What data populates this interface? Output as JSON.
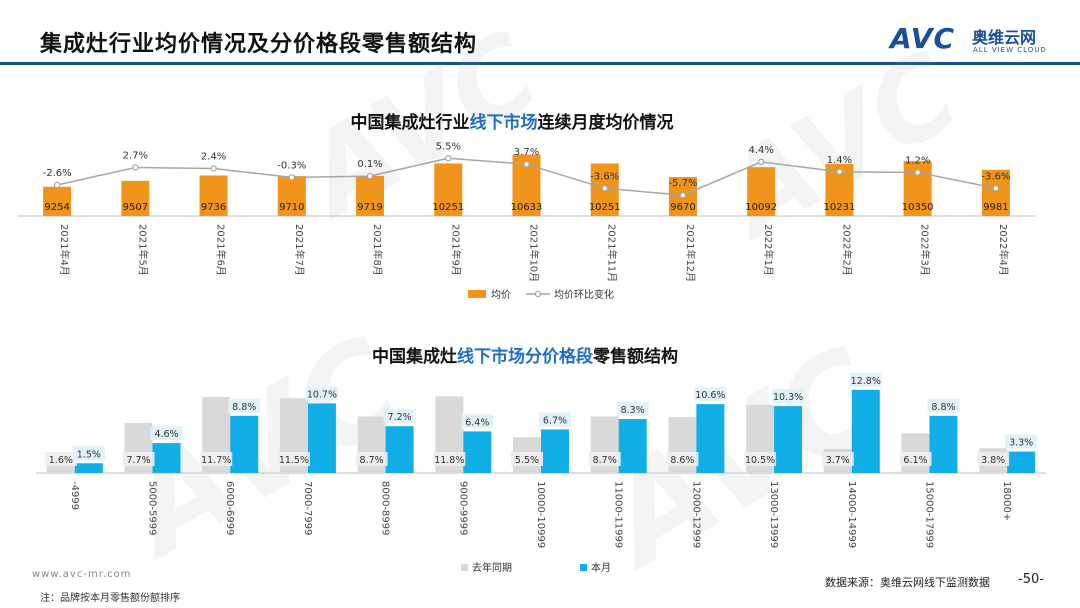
{
  "page_title": "集成灶行业均价情况及分价格段零售额结构",
  "logo": {
    "mark": "AVC",
    "cn": "奥维云网",
    "en": "ALL VIEW CLOUD"
  },
  "footer": {
    "url": "www.avc-mr.com",
    "note": "注：品牌按本月零售额份额排序",
    "source": "数据来源：奥维云网线下监测数据",
    "page": "-50-"
  },
  "colors": {
    "brand": "#1a4f9c",
    "orange": "#f0941c",
    "line": "#a6a6a6",
    "prev": "#d9d9d9",
    "curr": "#12aee8",
    "highlight": "#1f6fc5"
  },
  "chart_data": [
    {
      "type": "bar",
      "title_parts": [
        "中国集成灶行业",
        "线下市场",
        "连续月度均价情况"
      ],
      "categories": [
        "2021年4月",
        "2021年5月",
        "2021年6月",
        "2021年7月",
        "2021年8月",
        "2021年9月",
        "2021年10月",
        "2021年11月",
        "2021年12月",
        "2022年1月",
        "2022年2月",
        "2022年3月",
        "2022年4月"
      ],
      "series": [
        {
          "name": "均价",
          "type": "bar",
          "values": [
            9254,
            9507,
            9736,
            9710,
            9719,
            10251,
            10633,
            10251,
            9670,
            10092,
            10231,
            10350,
            9981
          ]
        },
        {
          "name": "均价环比变化",
          "type": "line",
          "values": [
            -2.6,
            2.7,
            2.4,
            -0.3,
            0.1,
            5.5,
            3.7,
            -3.6,
            -5.7,
            4.4,
            1.4,
            1.2,
            -3.6
          ]
        }
      ],
      "line_labels": [
        "-2.6%",
        "2.7%",
        "2.4%",
        "-0.3%",
        "0.1%",
        "5.5%",
        "3.7%",
        "-3.6%",
        "-5.7%",
        "4.4%",
        "1.4%",
        "1.2%",
        "-3.6%"
      ],
      "legend": [
        "均价",
        "均价环比变化"
      ],
      "ylim": [
        8000,
        11000
      ],
      "line_ylim": [
        -12,
        8
      ]
    },
    {
      "type": "bar",
      "title_parts": [
        "中国集成灶",
        "线下市场分价格段",
        "零售额结构"
      ],
      "categories": [
        "-4999",
        "5000-5999",
        "6000-6999",
        "7000-7999",
        "8000-8999",
        "9000-9999",
        "10000-10999",
        "11000-11999",
        "12000-12999",
        "13000-13999",
        "14000-14999",
        "15000-17999",
        "18000+"
      ],
      "series": [
        {
          "name": "去年同期",
          "values": [
            1.6,
            7.7,
            11.7,
            11.5,
            8.7,
            11.8,
            5.5,
            8.7,
            8.6,
            10.5,
            3.7,
            6.1,
            3.8
          ]
        },
        {
          "name": "本月",
          "values": [
            1.5,
            4.6,
            8.8,
            10.7,
            7.2,
            6.4,
            6.7,
            8.3,
            10.6,
            10.3,
            12.8,
            8.8,
            3.3
          ]
        }
      ],
      "prev_labels": [
        "1.6%",
        "7.7%",
        "11.7%",
        "11.5%",
        "8.7%",
        "11.8%",
        "5.5%",
        "8.7%",
        "8.6%",
        "10.5%",
        "3.7%",
        "6.1%",
        "3.8%"
      ],
      "curr_labels": [
        "1.5%",
        "4.6%",
        "8.8%",
        "10.7%",
        "7.2%",
        "6.4%",
        "6.7%",
        "8.3%",
        "10.6%",
        "10.3%",
        "12.8%",
        "8.8%",
        "3.3%"
      ],
      "legend": [
        "去年同期",
        "本月"
      ],
      "ylim": [
        0,
        14
      ]
    }
  ]
}
